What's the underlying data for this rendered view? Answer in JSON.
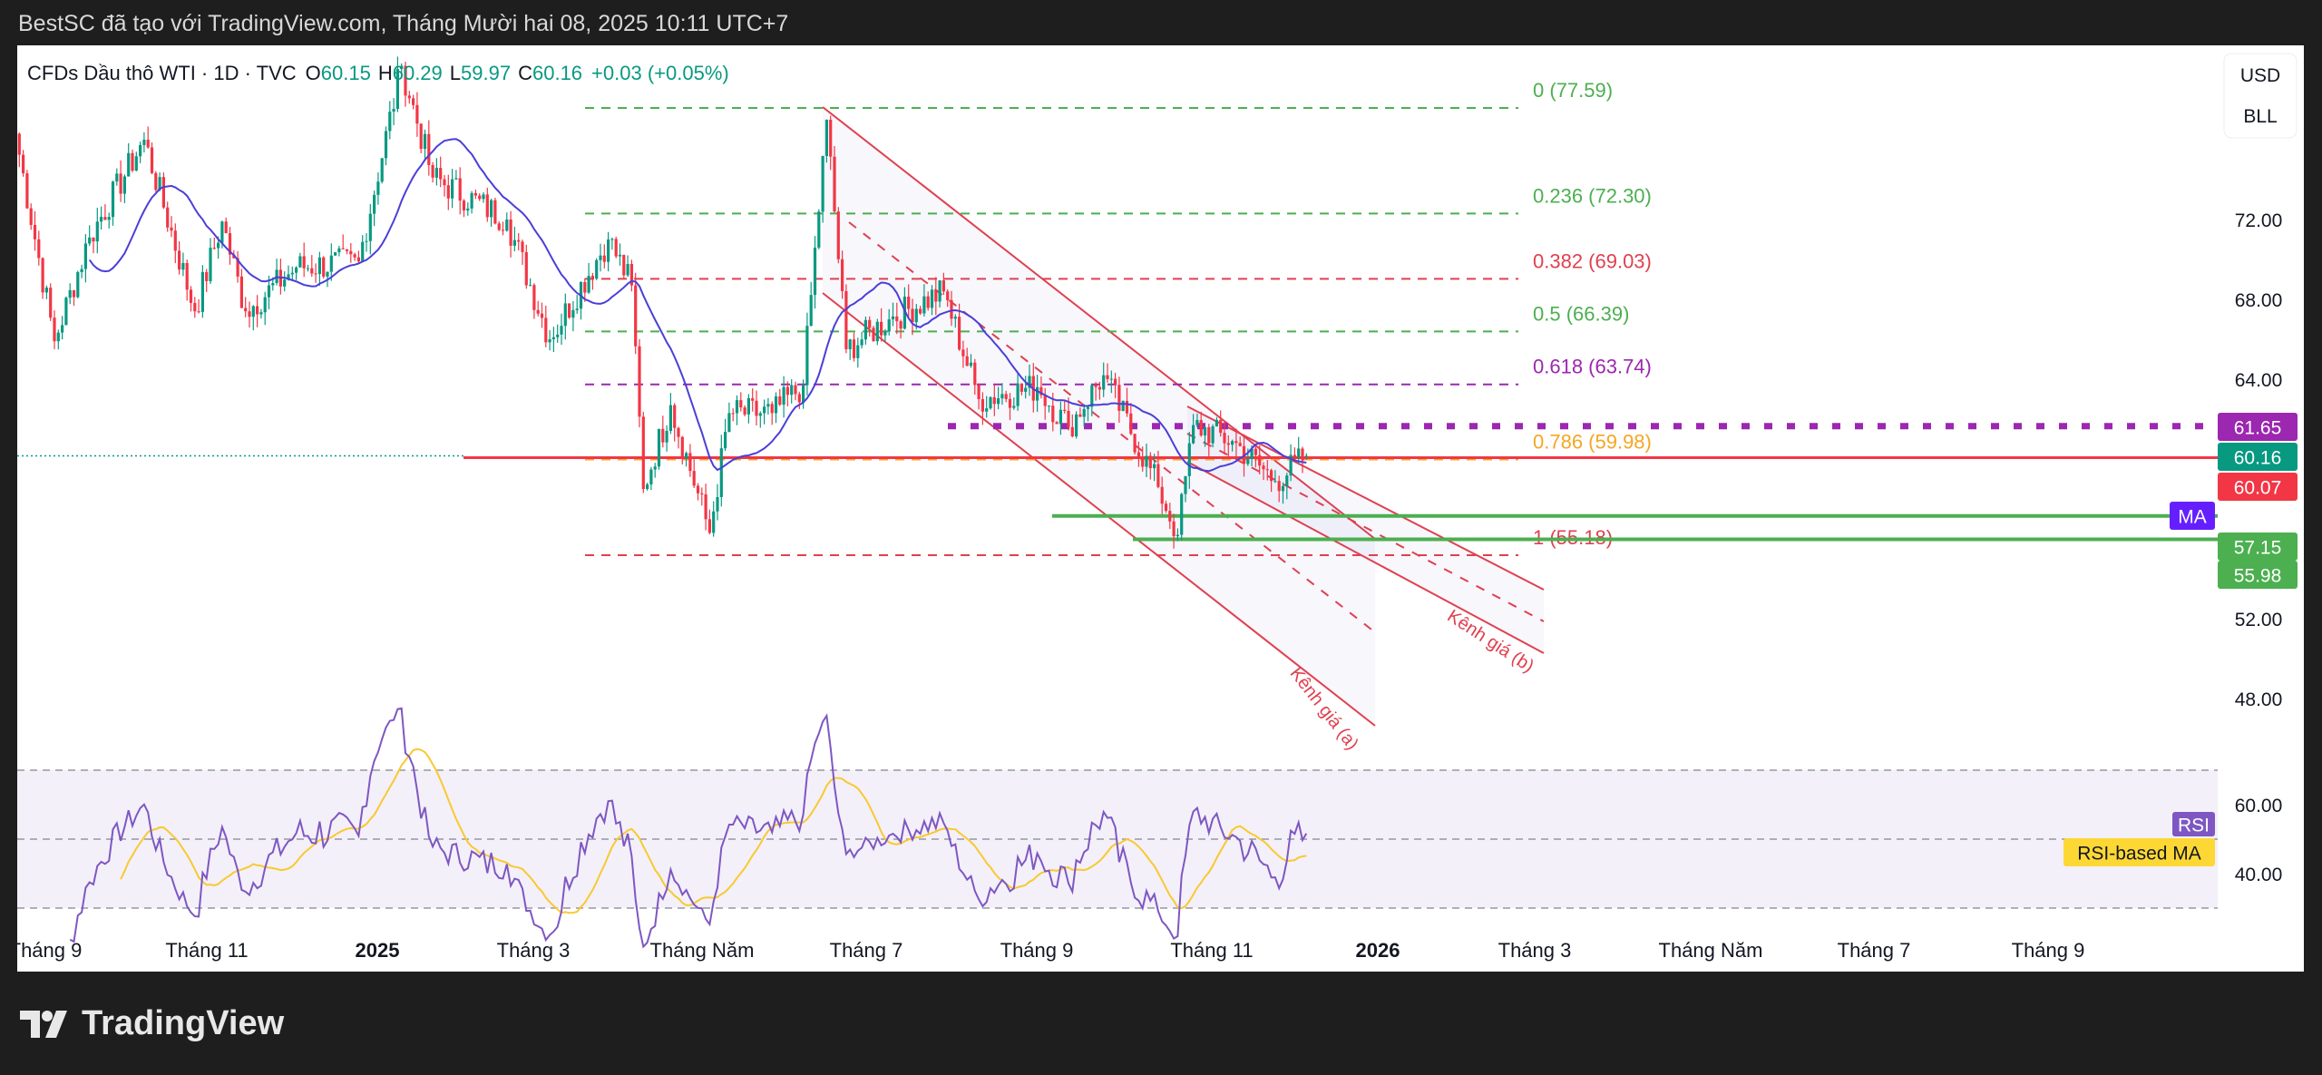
{
  "header": {
    "caption": "BestSC đã tạo với TradingView.com, Tháng Mười hai 08, 2025 10:11 UTC+7"
  },
  "legend": {
    "symbol": "CFDs Dầu thô WTI · 1D · TVC",
    "o_label": "O",
    "o": "60.15",
    "h_label": "H",
    "h": "60.29",
    "l_label": "L",
    "l": "59.97",
    "c_label": "C",
    "c": "60.16",
    "change": "+0.03 (+0.05%)"
  },
  "currency": {
    "line1": "USD",
    "line2": "BLL"
  },
  "colors": {
    "up": "#089981",
    "down": "#f23645",
    "ma": "#4b3fd8",
    "rsi": "#7e57c2",
    "rsi_ma": "#f9c930",
    "fib_green": "#4caf50",
    "fib_red": "#e04050",
    "fib_purple": "#9c27b0",
    "fib_orange": "#f5a623",
    "channel": "#e0404f",
    "support": "#4caf50"
  },
  "price_labels": {
    "purple": "61.65",
    "last": "60.16",
    "red": "60.07",
    "ma": "MA",
    "s1": "57.15",
    "s2": "55.98"
  },
  "rsi_labels": {
    "rsi": "RSI",
    "rsi_ma": "RSI-based MA"
  },
  "drawings": {
    "channel_a": "Kênh giá (a)",
    "channel_b": "Kênh giá (b)"
  },
  "footer": {
    "brand": "TradingView"
  },
  "chart_data": {
    "type": "candlestick",
    "title": "CFDs Dầu thô WTI · 1D · TVC",
    "y_axis": {
      "ticks": [
        72,
        68,
        64,
        52,
        48
      ],
      "tick_labels": [
        "72.00",
        "68.00",
        "64.00",
        "52.00",
        "48.00"
      ],
      "range": [
        45.5,
        79.5
      ]
    },
    "rsi_axis": {
      "ticks": [
        60,
        40
      ],
      "tick_labels": [
        "60.00",
        "40.00"
      ],
      "bands": [
        70,
        50,
        30
      ]
    },
    "x_axis": {
      "tick_labels": [
        "Tháng 9",
        "Tháng 11",
        "2025",
        "Tháng 3",
        "Tháng Năm",
        "Tháng 7",
        "Tháng 9",
        "Tháng 11",
        "2026",
        "Tháng 3",
        "Tháng Năm",
        "Tháng 7",
        "Tháng 9"
      ],
      "bold": [
        "2025",
        "2026"
      ]
    },
    "close_path": [
      [
        0,
        76.3
      ],
      [
        10,
        65.9
      ],
      [
        19,
        71.1
      ],
      [
        33,
        76
      ],
      [
        46,
        67.4
      ],
      [
        53,
        71.9
      ],
      [
        59,
        67.4
      ],
      [
        72,
        69.6
      ],
      [
        88,
        69.9
      ],
      [
        99,
        79.7
      ],
      [
        107,
        74.1
      ],
      [
        126,
        72
      ],
      [
        137,
        66
      ],
      [
        152,
        71
      ],
      [
        158,
        68.7
      ],
      [
        161,
        58.5
      ],
      [
        168,
        62.7
      ],
      [
        178,
        56.3
      ],
      [
        183,
        62.3
      ],
      [
        194,
        62.3
      ],
      [
        202,
        63.7
      ],
      [
        208,
        77
      ],
      [
        213,
        65.5
      ],
      [
        224,
        67
      ],
      [
        238,
        68.4
      ],
      [
        247,
        63
      ],
      [
        262,
        63.6
      ],
      [
        270,
        61.6
      ],
      [
        279,
        64.2
      ],
      [
        293,
        58.6
      ],
      [
        298,
        56.2
      ],
      [
        302,
        61.7
      ],
      [
        312,
        60.9
      ],
      [
        323,
        58.9
      ],
      [
        331,
        60.16
      ]
    ],
    "last_ohlc": {
      "open": 60.15,
      "high": 60.29,
      "low": 59.97,
      "close": 60.16
    },
    "ma_period": 20,
    "rsi_period": 14,
    "rsi_ma_period": 14,
    "fibonacci": [
      {
        "level": "0",
        "price": 77.59,
        "label": "0 (77.59)",
        "color": "green"
      },
      {
        "level": "0.236",
        "price": 72.3,
        "label": "0.236 (72.30)",
        "color": "green"
      },
      {
        "level": "0.382",
        "price": 69.03,
        "label": "0.382 (69.03)",
        "color": "red"
      },
      {
        "level": "0.5",
        "price": 66.39,
        "label": "0.5 (66.39)",
        "color": "green"
      },
      {
        "level": "0.618",
        "price": 63.74,
        "label": "0.618 (63.74)",
        "color": "purple"
      },
      {
        "level": "0.786",
        "price": 59.98,
        "label": "0.786 (59.98)",
        "color": "orange"
      },
      {
        "level": "1",
        "price": 55.18,
        "label": "1 (55.18)",
        "color": "red"
      }
    ],
    "horizontal_lines": [
      61.65,
      60.07,
      57.15,
      55.98
    ]
  }
}
